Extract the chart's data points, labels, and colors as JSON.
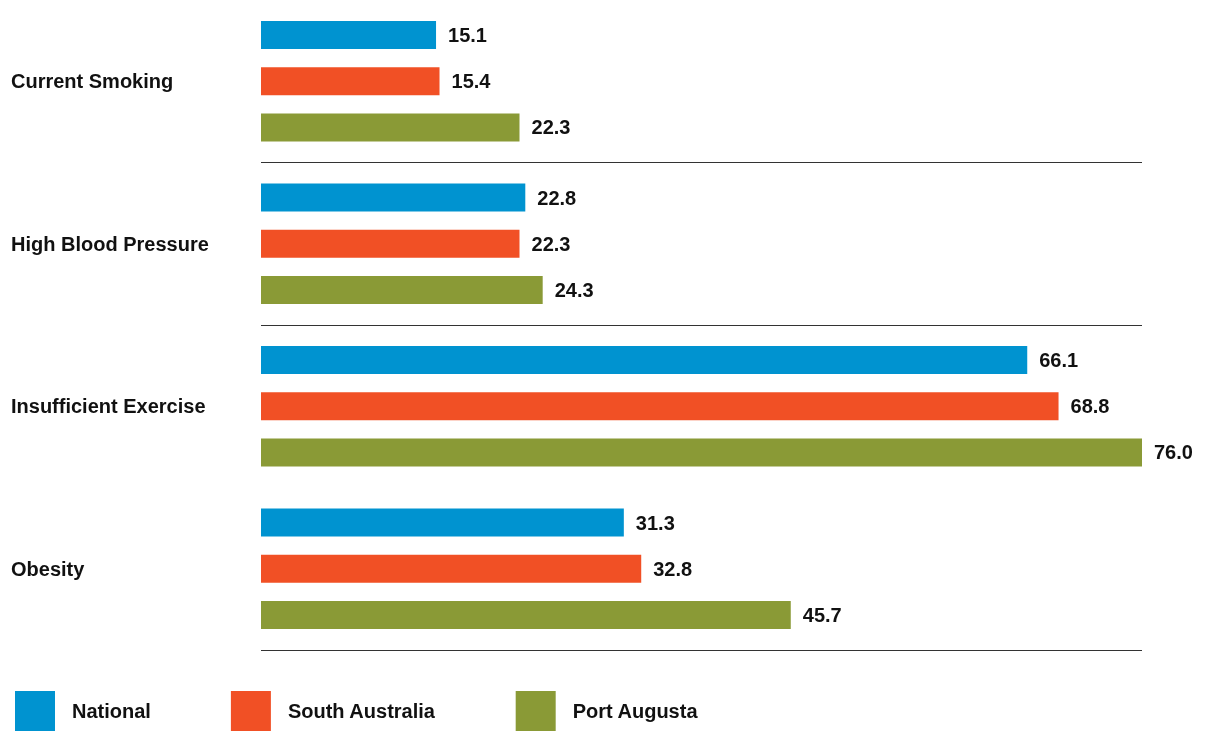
{
  "chart_data": {
    "type": "bar",
    "orientation": "horizontal",
    "categories": [
      "Current Smoking",
      "High Blood Pressure",
      "Insufficient Exercise",
      "Obesity"
    ],
    "series": [
      {
        "name": "National",
        "color": "#0093d0",
        "values": [
          15.1,
          22.8,
          66.1,
          31.3
        ],
        "value_labels": [
          "15.1",
          "22.8",
          "66.1",
          "31.3"
        ]
      },
      {
        "name": "South Australia",
        "color": "#f15025",
        "values": [
          15.4,
          22.3,
          68.8,
          32.8
        ],
        "value_labels": [
          "15.4",
          "22.3",
          "68.8",
          "32.8"
        ]
      },
      {
        "name": "Port Augusta",
        "color": "#8a9a36",
        "values": [
          22.3,
          24.3,
          76.0,
          45.7
        ],
        "value_labels": [
          "22.3",
          "24.3",
          "76.0",
          "45.7"
        ]
      }
    ],
    "grid": "y",
    "legend": "bottom left",
    "tick_labels": "y"
  }
}
